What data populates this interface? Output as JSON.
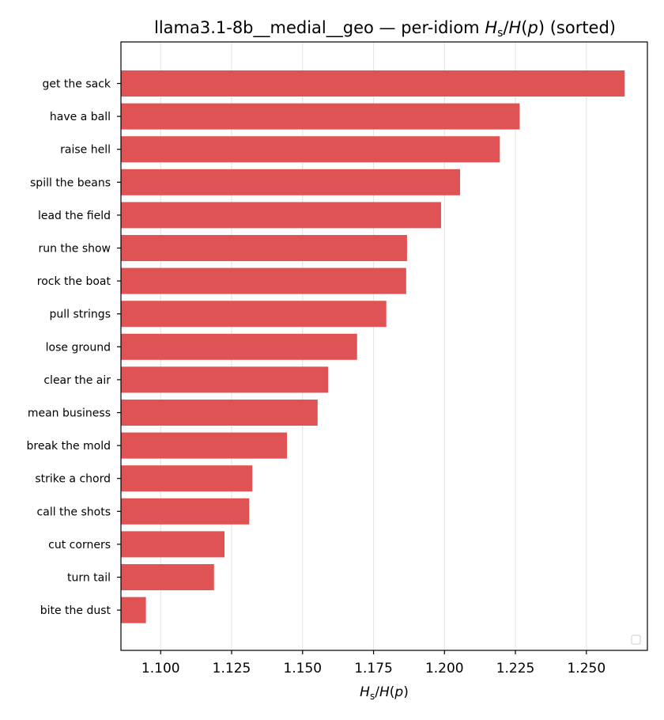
{
  "chart_data": {
    "type": "bar",
    "orientation": "horizontal",
    "title": "llama3.1-8b__medial__geo — per-idiom H_s/H(p) (sorted)",
    "title_parts": {
      "prefix": "llama3.1-8b__medial__geo — per-idiom ",
      "math": "Hs/H(p)",
      "suffix": " (sorted)"
    },
    "xlabel": "Hs/H(p)",
    "ylabel": "",
    "categories": [
      "get the sack",
      "have a ball",
      "raise hell",
      "spill the beans",
      "lead the field",
      "run the show",
      "rock the boat",
      "pull strings",
      "lose ground",
      "clear the air",
      "mean business",
      "break the mold",
      "strike a chord",
      "call the shots",
      "cut corners",
      "turn tail",
      "bite the dust"
    ],
    "values": [
      1.2635,
      1.2265,
      1.2195,
      1.2055,
      1.1988,
      1.1868,
      1.1865,
      1.1795,
      1.1692,
      1.159,
      1.1553,
      1.1445,
      1.1323,
      1.1312,
      1.1225,
      1.1188,
      1.0948
    ],
    "xlim": [
      1.086,
      1.2715
    ],
    "xticks": [
      "1.100",
      "1.125",
      "1.150",
      "1.175",
      "1.200",
      "1.225",
      "1.250"
    ],
    "xtick_values": [
      1.1,
      1.125,
      1.15,
      1.175,
      1.2,
      1.225,
      1.25
    ],
    "bar_color": "#e05355",
    "grid": "x",
    "legend": "bottom-right (empty)"
  }
}
